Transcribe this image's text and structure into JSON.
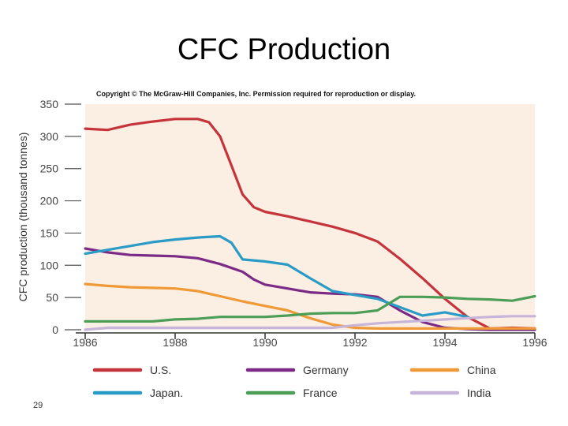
{
  "slide": {
    "title": "CFC Production",
    "copyright": "Copyright © The McGraw-Hill Companies, Inc. Permission required for reproduction or display.",
    "slide_number": "29"
  },
  "chart_data": {
    "type": "line",
    "ylabel": "CFC production (thousand tonnes)",
    "xlim": [
      1986,
      1996
    ],
    "ylim": [
      0,
      350
    ],
    "x_ticks": [
      1986,
      1988,
      1990,
      1992,
      1994,
      1996
    ],
    "x_tick_labels": [
      "1986",
      "1988",
      "1990",
      "1992",
      "1994",
      "1996"
    ],
    "y_ticks": [
      0,
      50,
      100,
      150,
      200,
      250,
      300,
      350
    ],
    "y_tick_labels": [
      "0",
      "50",
      "100",
      "150",
      "200",
      "250",
      "300",
      "350"
    ],
    "grid": false,
    "legend_position": "bottom",
    "background": "#fbeee3",
    "series": [
      {
        "name": "U.S.",
        "color": "#c4343a",
        "x": [
          1986,
          1986.5,
          1987,
          1987.5,
          1988,
          1988.5,
          1988.75,
          1989,
          1989.25,
          1989.5,
          1989.75,
          1990,
          1990.5,
          1991,
          1991.5,
          1992,
          1992.5,
          1993,
          1993.5,
          1994,
          1994.5,
          1995,
          1995.5,
          1996
        ],
        "y": [
          312,
          310,
          318,
          323,
          327,
          327,
          322,
          300,
          255,
          210,
          190,
          183,
          176,
          168,
          160,
          150,
          137,
          110,
          80,
          48,
          20,
          2,
          3,
          2
        ]
      },
      {
        "name": "Germany",
        "color": "#7b2a86",
        "x": [
          1986,
          1986.5,
          1987,
          1987.5,
          1988,
          1988.5,
          1989,
          1989.5,
          1989.75,
          1990,
          1990.5,
          1991,
          1991.5,
          1992,
          1992.5,
          1993,
          1993.5,
          1994,
          1994.5,
          1995,
          1996
        ],
        "y": [
          126,
          120,
          116,
          115,
          114,
          111,
          102,
          90,
          78,
          70,
          64,
          58,
          56,
          55,
          51,
          30,
          12,
          3,
          1,
          0,
          0
        ]
      },
      {
        "name": "China",
        "color": "#ef9a36",
        "x": [
          1986,
          1986.5,
          1987,
          1987.5,
          1988,
          1988.5,
          1989,
          1989.5,
          1990,
          1990.5,
          1991,
          1991.5,
          1992,
          1992.5,
          1993,
          1993.5,
          1994,
          1995,
          1996
        ],
        "y": [
          71,
          68,
          66,
          65,
          64,
          60,
          52,
          44,
          37,
          30,
          18,
          8,
          3,
          2,
          2,
          2,
          2,
          2,
          2
        ]
      },
      {
        "name": "Japan.",
        "color": "#2a9bc6",
        "x": [
          1986,
          1986.5,
          1987,
          1987.5,
          1988,
          1988.5,
          1989,
          1989.25,
          1989.5,
          1990,
          1990.5,
          1991,
          1991.5,
          1992,
          1992.5,
          1993,
          1993.5,
          1994,
          1994.5
        ],
        "y": [
          118,
          124,
          130,
          136,
          140,
          143,
          145,
          135,
          109,
          106,
          101,
          80,
          60,
          54,
          48,
          35,
          22,
          27,
          20
        ]
      },
      {
        "name": "France",
        "color": "#4c9e57",
        "x": [
          1986,
          1986.5,
          1987,
          1987.5,
          1988,
          1988.5,
          1989,
          1989.5,
          1990,
          1990.5,
          1991,
          1991.5,
          1992,
          1992.5,
          1993,
          1993.5,
          1994,
          1994.5,
          1995,
          1995.5,
          1996
        ],
        "y": [
          13,
          13,
          13,
          13,
          16,
          17,
          20,
          20,
          20,
          22,
          25,
          26,
          26,
          30,
          51,
          51,
          50,
          48,
          47,
          45,
          52
        ]
      },
      {
        "name": "India",
        "color": "#c7b5d9",
        "x": [
          1986,
          1986.5,
          1987,
          1987.5,
          1988,
          1988.5,
          1989,
          1989.5,
          1990,
          1990.5,
          1991,
          1991.5,
          1992,
          1992.5,
          1993,
          1993.5,
          1994,
          1994.5,
          1995,
          1995.5,
          1996
        ],
        "y": [
          0,
          3,
          3,
          3,
          3,
          3,
          3,
          3,
          3,
          3,
          3,
          3,
          7,
          10,
          12,
          14,
          16,
          18,
          20,
          21,
          21
        ]
      }
    ]
  }
}
